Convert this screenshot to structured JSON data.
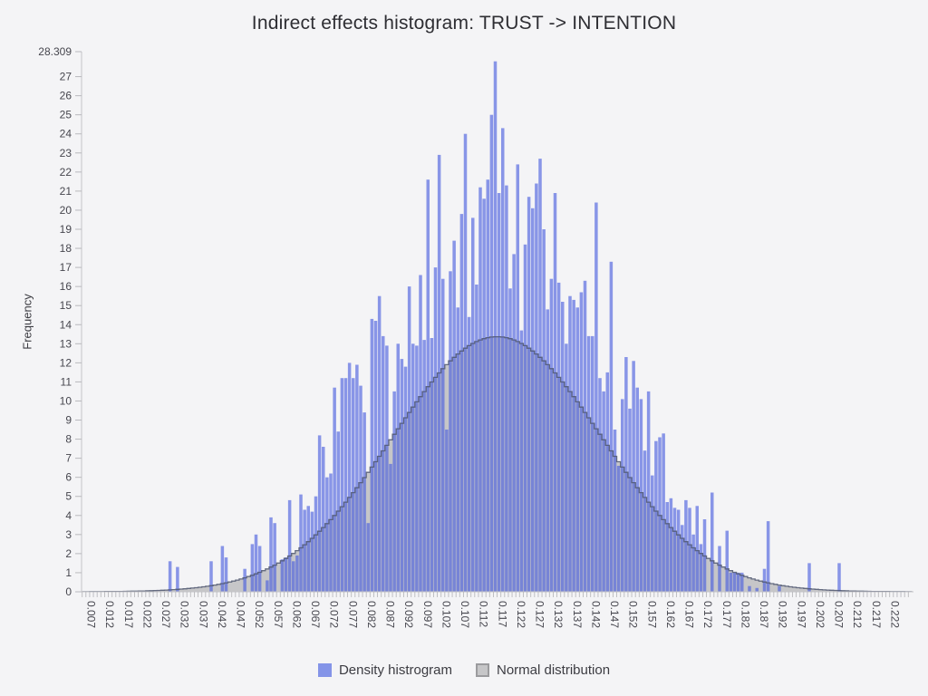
{
  "title": "Indirect effects histogram: TRUST -> INTENTION",
  "y_axis": {
    "label": "Frequency",
    "max_label": "28.309",
    "ticks": [
      0,
      1,
      2,
      3,
      4,
      5,
      6,
      7,
      8,
      9,
      10,
      11,
      12,
      13,
      14,
      15,
      16,
      17,
      18,
      19,
      20,
      21,
      22,
      23,
      24,
      25,
      26,
      27
    ]
  },
  "x_axis": {
    "tick_labels": [
      "0.007",
      "0.012",
      "0.017",
      "0.022",
      "0.027",
      "0.032",
      "0.037",
      "0.042",
      "0.047",
      "0.052",
      "0.057",
      "0.062",
      "0.067",
      "0.072",
      "0.077",
      "0.082",
      "0.087",
      "0.092",
      "0.097",
      "0.102",
      "0.107",
      "0.112",
      "0.117",
      "0.122",
      "0.127",
      "0.132",
      "0.137",
      "0.142",
      "0.147",
      "0.152",
      "0.157",
      "0.162",
      "0.167",
      "0.172",
      "0.177",
      "0.182",
      "0.187",
      "0.192",
      "0.197",
      "0.202",
      "0.207",
      "0.212",
      "0.217",
      "0.222"
    ]
  },
  "legend": {
    "density_label": "Density histrogram",
    "normal_label": "Normal distribution"
  },
  "colors": {
    "background": "#f4f4f6",
    "bar_fill": "rgba(73,94,221,0.63)",
    "bar_legend": "#8494e8",
    "normal_fill": "#c6c6c8",
    "normal_stroke": "#4e566e",
    "normal_legend_border": "#9b9b9e",
    "axis_line": "#c4c4c8",
    "tick_mark": "#b9b9bd",
    "tick_text": "#46464e"
  },
  "chart_data": {
    "type": "bar",
    "subtype": "histogram-with-normal-overlay",
    "title": "Indirect effects histogram: TRUST -> INTENTION",
    "xlabel": "",
    "ylabel": "Frequency",
    "ylim": [
      0,
      28.309
    ],
    "x_start": 0.007,
    "x_step": 0.001,
    "grid": false,
    "legend_position": "bottom-center",
    "values": [
      0,
      0,
      0,
      0,
      0,
      0,
      0,
      0,
      0,
      0,
      0,
      0,
      0,
      0,
      0,
      0,
      0,
      0,
      0,
      0,
      0,
      1.6,
      0,
      1.3,
      0,
      0,
      0,
      0,
      0,
      0,
      0,
      0,
      1.6,
      0,
      0,
      2.4,
      1.8,
      0,
      0,
      0,
      0,
      1.2,
      0,
      2.5,
      3.0,
      2.4,
      0,
      0.6,
      3.9,
      3.6,
      0,
      1.7,
      1.8,
      4.8,
      1.6,
      1.9,
      5.1,
      4.3,
      4.5,
      4.2,
      5.0,
      8.2,
      7.6,
      6.0,
      6.2,
      10.7,
      8.4,
      11.2,
      11.2,
      12.0,
      11.2,
      11.9,
      10.8,
      9.4,
      3.6,
      14.3,
      14.2,
      15.5,
      13.4,
      12.9,
      6.7,
      10.5,
      13.0,
      12.2,
      11.8,
      16.0,
      13.0,
      12.9,
      16.6,
      13.2,
      21.6,
      13.3,
      17.0,
      22.9,
      16.4,
      8.5,
      16.8,
      18.4,
      14.9,
      19.8,
      24.0,
      14.4,
      19.6,
      16.1,
      21.2,
      20.6,
      21.6,
      25.0,
      27.8,
      20.9,
      24.3,
      21.3,
      15.9,
      17.7,
      22.4,
      13.7,
      18.2,
      20.7,
      20.1,
      21.4,
      22.7,
      19.0,
      14.8,
      16.4,
      20.9,
      16.2,
      15.2,
      13.0,
      15.5,
      15.3,
      14.9,
      15.7,
      16.3,
      13.4,
      13.4,
      20.4,
      11.2,
      10.5,
      11.5,
      17.3,
      8.5,
      6.6,
      10.1,
      12.3,
      9.6,
      12.1,
      10.7,
      10.1,
      7.4,
      10.5,
      6.1,
      7.9,
      8.1,
      8.3,
      4.7,
      4.9,
      4.4,
      4.3,
      3.5,
      4.8,
      4.4,
      3.0,
      4.5,
      2.5,
      3.8,
      0,
      5.2,
      0,
      2.4,
      0,
      3.2,
      1.0,
      1.0,
      1.0,
      1.0,
      0,
      0.3,
      0,
      0.2,
      0,
      1.2,
      3.7,
      0,
      0,
      0.3,
      0,
      0,
      0,
      0,
      0,
      0,
      0,
      1.5,
      0,
      0,
      0,
      0,
      0,
      0,
      0,
      1.5,
      0,
      0,
      0,
      0,
      0,
      0,
      0,
      0,
      0,
      0,
      0,
      0,
      0,
      0,
      0
    ],
    "normal_curve": {
      "mean": 0.1155,
      "sd": 0.028,
      "peak": 13.37
    },
    "series_names": [
      "Density histrogram",
      "Normal distribution"
    ]
  }
}
